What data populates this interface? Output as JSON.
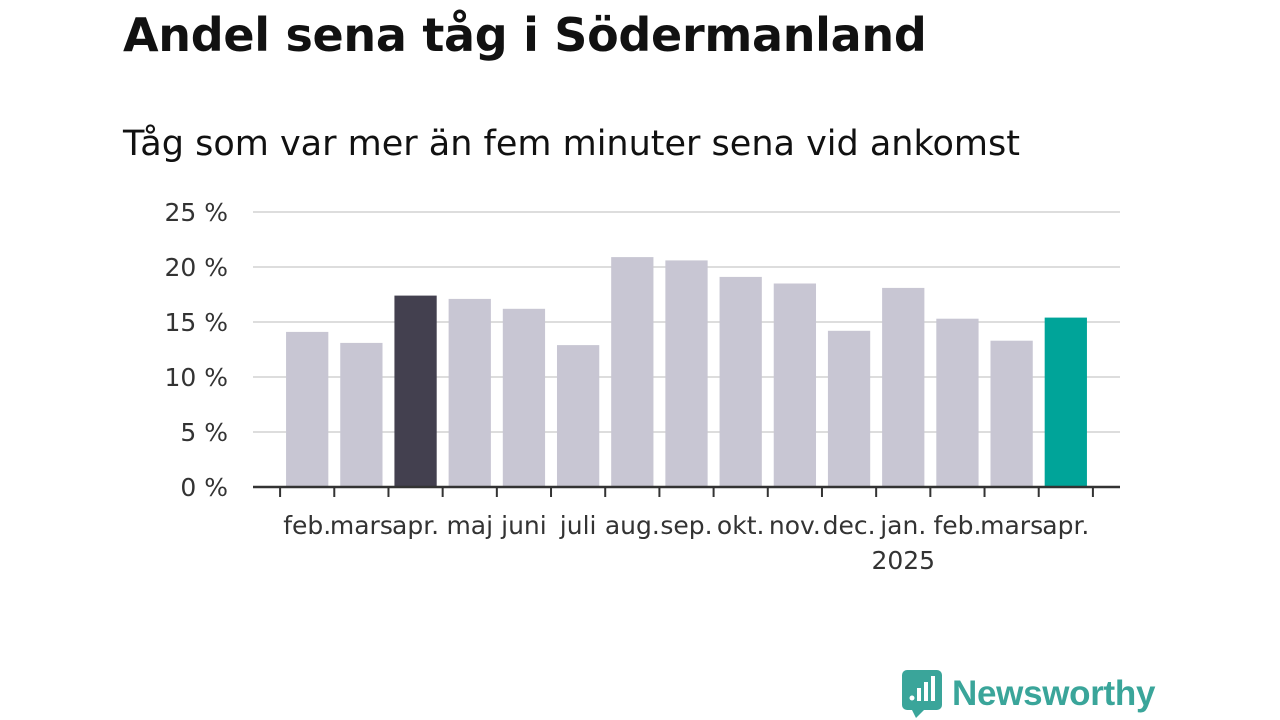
{
  "title": "Andel sena tåg i Södermanland",
  "subtitle": "Tåg som var mer än fem minuter sena vid ankomst",
  "brand": {
    "name": "Newsworthy",
    "color": "#3aa59a",
    "icon": "bar-chart-speech-bubble-icon"
  },
  "colors": {
    "default_bar": "#c8c6d3",
    "highlight_previous": "#43404f",
    "highlight_latest": "#00a499",
    "grid": "#dddddd",
    "axis": "#333333"
  },
  "chart_data": {
    "type": "bar",
    "title": "Andel sena tåg i Södermanland",
    "subtitle": "Tåg som var mer än fem minuter sena vid ankomst",
    "xlabel": "",
    "ylabel": "",
    "ylim": [
      0,
      25
    ],
    "y_ticks": [
      "0 %",
      "5 %",
      "10 %",
      "15 %",
      "20 %",
      "25 %"
    ],
    "y_tick_values": [
      0,
      5,
      10,
      15,
      20,
      25
    ],
    "grid": true,
    "categories": [
      "feb.",
      "mars",
      "apr.",
      "maj",
      "juni",
      "juli",
      "aug.",
      "sep.",
      "okt.",
      "nov.",
      "dec.",
      "jan.",
      "feb.",
      "mars",
      "apr."
    ],
    "year_labels": [
      "",
      "",
      "",
      "",
      "",
      "",
      "",
      "",
      "",
      "",
      "",
      "2025",
      "",
      "",
      ""
    ],
    "values": [
      14.1,
      13.1,
      17.4,
      17.1,
      16.2,
      12.9,
      20.9,
      20.6,
      19.1,
      18.5,
      14.2,
      18.1,
      15.3,
      13.3,
      15.4
    ],
    "highlight": [
      "",
      "",
      "previous",
      "",
      "",
      "",
      "",
      "",
      "",
      "",
      "",
      "",
      "",
      "",
      "latest"
    ]
  }
}
